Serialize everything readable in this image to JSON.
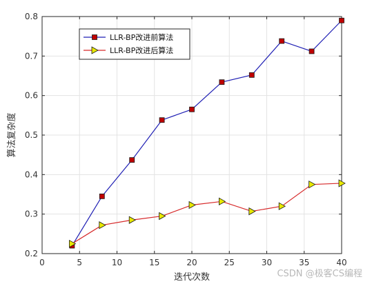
{
  "chart_data": {
    "type": "line",
    "title": "",
    "xlabel": "迭代次数",
    "ylabel": "算法复杂度",
    "xlim": [
      0,
      40
    ],
    "ylim": [
      0.2,
      0.8
    ],
    "xticks": [
      0,
      5,
      10,
      15,
      20,
      25,
      30,
      35,
      40
    ],
    "yticks": [
      0.2,
      0.3,
      0.4,
      0.5,
      0.6,
      0.7,
      0.8
    ],
    "grid": true,
    "legend_position": "top-left",
    "x": [
      4,
      8,
      12,
      16,
      20,
      24,
      28,
      32,
      36,
      40
    ],
    "series": [
      {
        "name": "LLR-BP改进前算法",
        "line_color": "#1f1fb4",
        "marker": "square",
        "marker_color": "#c00000",
        "values": [
          0.22,
          0.345,
          0.437,
          0.538,
          0.565,
          0.634,
          0.652,
          0.738,
          0.712,
          0.79
        ]
      },
      {
        "name": "LLR-BP改进后算法",
        "line_color": "#d62728",
        "marker": "triangle-right",
        "marker_color": "#e8e800",
        "values": [
          0.225,
          0.272,
          0.285,
          0.295,
          0.323,
          0.332,
          0.307,
          0.32,
          0.375,
          0.378
        ]
      }
    ]
  },
  "watermark": "CSDN @极客CS编程"
}
